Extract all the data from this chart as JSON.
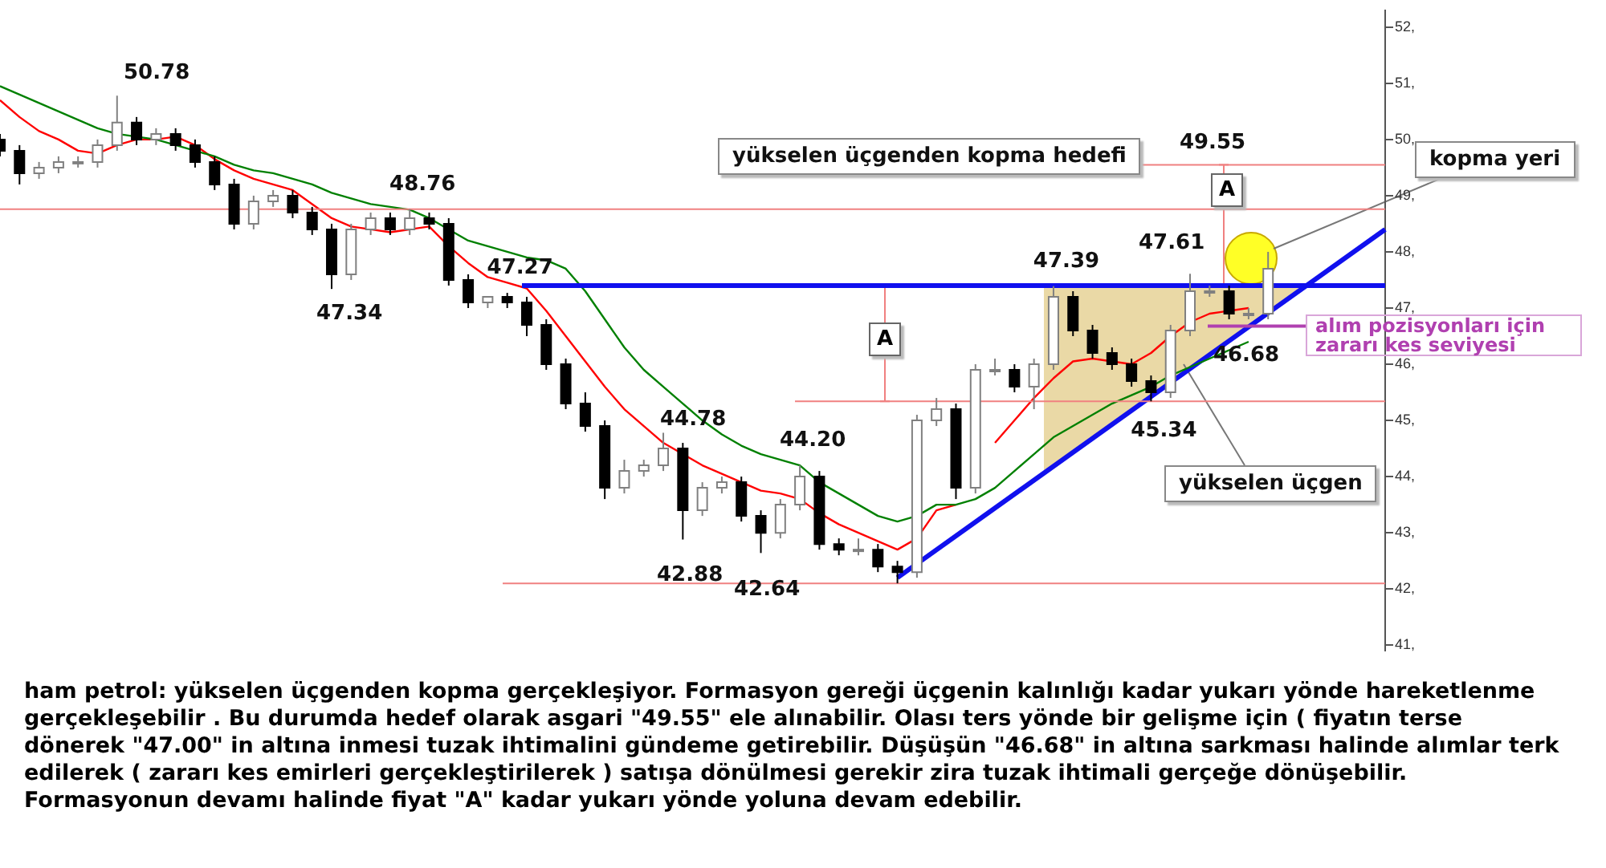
{
  "chart_data": {
    "type": "candlestick",
    "categories": [
      null,
      null,
      null,
      null,
      null,
      null,
      null,
      null,
      null,
      null,
      null,
      null,
      null,
      null,
      null,
      null,
      null,
      null,
      null,
      null,
      null,
      null,
      null,
      null,
      null,
      null,
      null,
      null,
      null,
      null,
      null,
      null,
      null,
      null,
      null,
      null,
      null,
      null,
      null,
      null,
      null,
      null,
      null,
      null,
      null,
      null,
      null,
      null,
      null,
      null,
      null,
      null,
      null,
      null,
      null,
      null,
      null,
      null,
      null,
      null,
      null,
      null,
      null,
      null,
      null,
      null,
      null,
      null,
      null,
      null,
      null,
      null
    ],
    "ohlc": [
      [
        50.0,
        50.1,
        49.7,
        49.8
      ],
      [
        49.8,
        49.9,
        49.2,
        49.4
      ],
      [
        49.4,
        49.6,
        49.3,
        49.5
      ],
      [
        49.5,
        49.7,
        49.4,
        49.6
      ],
      [
        49.6,
        49.7,
        49.5,
        49.6
      ],
      [
        49.6,
        50.0,
        49.5,
        49.9
      ],
      [
        49.9,
        50.78,
        49.8,
        50.3
      ],
      [
        50.3,
        50.4,
        49.9,
        50.0
      ],
      [
        50.0,
        50.2,
        49.9,
        50.1
      ],
      [
        50.1,
        50.2,
        49.8,
        49.9
      ],
      [
        49.9,
        50.0,
        49.5,
        49.6
      ],
      [
        49.6,
        49.7,
        49.1,
        49.2
      ],
      [
        49.2,
        49.3,
        48.4,
        48.5
      ],
      [
        48.5,
        49.0,
        48.4,
        48.9
      ],
      [
        48.9,
        49.1,
        48.8,
        49.0
      ],
      [
        49.0,
        49.1,
        48.6,
        48.7
      ],
      [
        48.7,
        48.8,
        48.3,
        48.4
      ],
      [
        48.4,
        48.5,
        47.34,
        47.6
      ],
      [
        47.6,
        48.5,
        47.5,
        48.4
      ],
      [
        48.4,
        48.7,
        48.3,
        48.6
      ],
      [
        48.6,
        48.7,
        48.3,
        48.4
      ],
      [
        48.4,
        48.76,
        48.3,
        48.6
      ],
      [
        48.6,
        48.7,
        48.4,
        48.5
      ],
      [
        48.5,
        48.6,
        47.4,
        47.5
      ],
      [
        47.5,
        47.6,
        47.0,
        47.1
      ],
      [
        47.1,
        47.2,
        47.0,
        47.2
      ],
      [
        47.2,
        47.27,
        47.0,
        47.1
      ],
      [
        47.1,
        47.2,
        46.5,
        46.7
      ],
      [
        46.7,
        46.8,
        45.9,
        46.0
      ],
      [
        46.0,
        46.1,
        45.2,
        45.3
      ],
      [
        45.3,
        45.5,
        44.8,
        44.9
      ],
      [
        44.9,
        45.0,
        43.6,
        43.8
      ],
      [
        43.8,
        44.3,
        43.7,
        44.1
      ],
      [
        44.1,
        44.3,
        44.0,
        44.2
      ],
      [
        44.2,
        44.78,
        44.1,
        44.5
      ],
      [
        44.5,
        44.6,
        42.88,
        43.4
      ],
      [
        43.4,
        43.9,
        43.3,
        43.8
      ],
      [
        43.8,
        44.0,
        43.7,
        43.9
      ],
      [
        43.9,
        44.0,
        43.2,
        43.3
      ],
      [
        43.3,
        43.4,
        42.64,
        43.0
      ],
      [
        43.0,
        43.6,
        42.9,
        43.5
      ],
      [
        43.5,
        44.2,
        43.4,
        44.0
      ],
      [
        44.0,
        44.1,
        42.7,
        42.8
      ],
      [
        42.8,
        42.9,
        42.6,
        42.7
      ],
      [
        42.7,
        42.9,
        42.6,
        42.7
      ],
      [
        42.7,
        42.8,
        42.3,
        42.4
      ],
      [
        42.4,
        42.5,
        42.1,
        42.3
      ],
      [
        42.3,
        45.1,
        42.2,
        45.0
      ],
      [
        45.0,
        45.4,
        44.9,
        45.2
      ],
      [
        45.2,
        45.3,
        43.6,
        43.8
      ],
      [
        43.8,
        46.0,
        43.7,
        45.9
      ],
      [
        45.9,
        46.1,
        45.8,
        45.9
      ],
      [
        45.9,
        46.0,
        45.5,
        45.6
      ],
      [
        45.6,
        46.1,
        45.2,
        46.0
      ],
      [
        46.0,
        47.39,
        45.9,
        47.2
      ],
      [
        47.2,
        47.3,
        46.5,
        46.6
      ],
      [
        46.6,
        46.7,
        46.1,
        46.2
      ],
      [
        46.2,
        46.3,
        45.9,
        46.0
      ],
      [
        46.0,
        46.1,
        45.6,
        45.7
      ],
      [
        45.7,
        45.8,
        45.34,
        45.5
      ],
      [
        45.5,
        46.7,
        45.4,
        46.6
      ],
      [
        46.6,
        47.61,
        46.5,
        47.3
      ],
      [
        47.3,
        47.4,
        47.2,
        47.3
      ],
      [
        47.3,
        47.4,
        46.8,
        46.9
      ],
      [
        46.9,
        47.0,
        46.8,
        46.9
      ],
      [
        46.9,
        48.0,
        46.8,
        47.7
      ],
      null,
      null,
      null,
      null,
      null,
      null
    ],
    "series": [
      {
        "type": "line",
        "color": "#008000",
        "values": [
          50.95,
          50.8,
          50.65,
          50.5,
          50.35,
          50.2,
          50.1,
          50.05,
          50.0,
          49.9,
          49.8,
          49.7,
          49.55,
          49.45,
          49.4,
          49.3,
          49.2,
          49.05,
          48.95,
          48.85,
          48.8,
          48.75,
          48.6,
          48.4,
          48.2,
          48.1,
          48.0,
          47.9,
          47.85,
          47.7,
          47.3,
          46.8,
          46.3,
          45.9,
          45.6,
          45.3,
          45.0,
          44.75,
          44.55,
          44.4,
          44.3,
          44.2,
          43.9,
          43.7,
          43.5,
          43.3,
          43.2,
          43.3,
          43.5,
          43.5,
          43.6,
          43.8,
          44.1,
          44.4,
          44.7,
          44.9,
          45.1,
          45.3,
          45.45,
          45.6,
          45.8,
          45.95,
          46.1,
          46.25,
          46.4,
          null,
          null,
          null,
          null,
          null,
          null,
          null
        ]
      },
      {
        "type": "line",
        "color": "#ff0000",
        "values": [
          50.7,
          50.4,
          50.15,
          50.0,
          49.8,
          49.75,
          49.9,
          50.0,
          50.0,
          50.05,
          49.9,
          49.65,
          49.45,
          49.3,
          49.2,
          49.1,
          48.85,
          48.6,
          48.45,
          48.4,
          48.35,
          48.4,
          48.45,
          48.1,
          47.8,
          47.55,
          47.45,
          47.35,
          46.95,
          46.5,
          46.05,
          45.6,
          45.2,
          44.9,
          44.6,
          44.4,
          44.2,
          44.05,
          43.9,
          43.75,
          43.7,
          43.6,
          43.35,
          43.15,
          43.0,
          42.85,
          42.7,
          42.9,
          43.4,
          43.5,
          null,
          44.6,
          45.0,
          45.4,
          45.75,
          46.05,
          46.1,
          46.05,
          46.0,
          46.2,
          46.5,
          46.75,
          46.9,
          46.95,
          47.0,
          null,
          null,
          null,
          null,
          null,
          null,
          null
        ]
      },
      {
        "type": "line",
        "color": "#1010ee",
        "values": [
          null,
          null,
          null,
          null,
          null,
          null,
          null,
          null,
          null,
          null,
          null,
          null,
          null,
          null,
          null,
          null,
          null,
          null,
          null,
          null,
          null,
          null,
          null,
          null,
          null,
          null,
          null,
          null,
          null,
          null,
          null,
          null,
          null,
          null,
          null,
          null,
          null,
          null,
          null,
          null,
          null,
          null,
          null,
          null,
          null,
          null,
          42.2,
          null,
          null,
          null,
          null,
          null,
          null,
          null,
          null,
          null,
          null,
          null,
          null,
          null,
          null,
          null,
          null,
          null,
          null,
          null,
          null,
          null,
          null,
          null,
          null,
          48.4
        ]
      }
    ],
    "ref_lines": [
      {
        "axis": "y",
        "value": 49.55,
        "label": "49.55",
        "color": "#f08080"
      },
      {
        "axis": "y",
        "value": 48.76,
        "color": "#f08080"
      },
      {
        "axis": "y",
        "value": 47.4,
        "color": "#1010ee"
      },
      {
        "axis": "y",
        "value": 45.34,
        "color": "#f08080"
      },
      {
        "axis": "y",
        "value": 42.1,
        "color": "#f08080"
      },
      {
        "axis": "y",
        "value": 46.68,
        "label": "46.68",
        "color": "#b040b0"
      }
    ],
    "annotations": [
      "yükselen üçgenden kopma hedefi",
      "kopma yeri",
      "yükselen üçgen",
      "alım pozisyonları için zararı kes seviyesi",
      "A",
      "A",
      "ham petrol: yükselen üçgenden kopma gerçekleşiyor. Formasyon gereği üçgenin kalınlığı kadar yukarı yönde hareketlenme gerçekleşebilir . Bu durumda hedef olarak asgari \"49.55\" ele alınabilir. Olası ters yönde bir gelişme için ( fiyatın terse dönerek \"47.00\" in altına inmesi tuzak ihtimalini gündeme getirebilir. Düşüşün \"46.68\" in altına sarkması halinde alımlar terk edilerek ( zararı kes emirleri gerçekleştirilerek ) satışa dönülmesi gerekir zira tuzak ihtimali gerçeğe dönüşebilir. Formasyonun devamı halinde fiyat \"A\" kadar yukarı yönde yoluna devam edebilir.",
      "50.78",
      "47.34",
      "44.78",
      "42.88",
      "42.64",
      "47.61",
      {
        "text": "48.76",
        "y": 48.76
      },
      {
        "text": "47.27",
        "y": 47.27
      },
      {
        "text": "44.20",
        "y": 44.2
      },
      {
        "text": "47.39",
        "y": 47.39
      },
      {
        "text": "45.34",
        "y": 45.34
      }
    ],
    "ylim": [
      40.9,
      52.3
    ],
    "yticks": [
      {
        "value": 41,
        "label": "41,"
      },
      {
        "value": 42,
        "label": "42,"
      },
      {
        "value": 43,
        "label": "43,"
      },
      {
        "value": 44,
        "label": "44,"
      },
      {
        "value": 45,
        "label": "45,"
      },
      {
        "value": 46,
        "label": "46,"
      },
      {
        "value": 47,
        "label": "47,"
      },
      {
        "value": 48,
        "label": "48,"
      },
      {
        "value": 49,
        "label": "49,"
      },
      {
        "value": 50,
        "label": "50,"
      },
      {
        "value": 51,
        "label": "51,"
      },
      {
        "value": 52,
        "label": "52,"
      }
    ],
    "tick_labels": "y",
    "legend": false,
    "grid": false
  }
}
